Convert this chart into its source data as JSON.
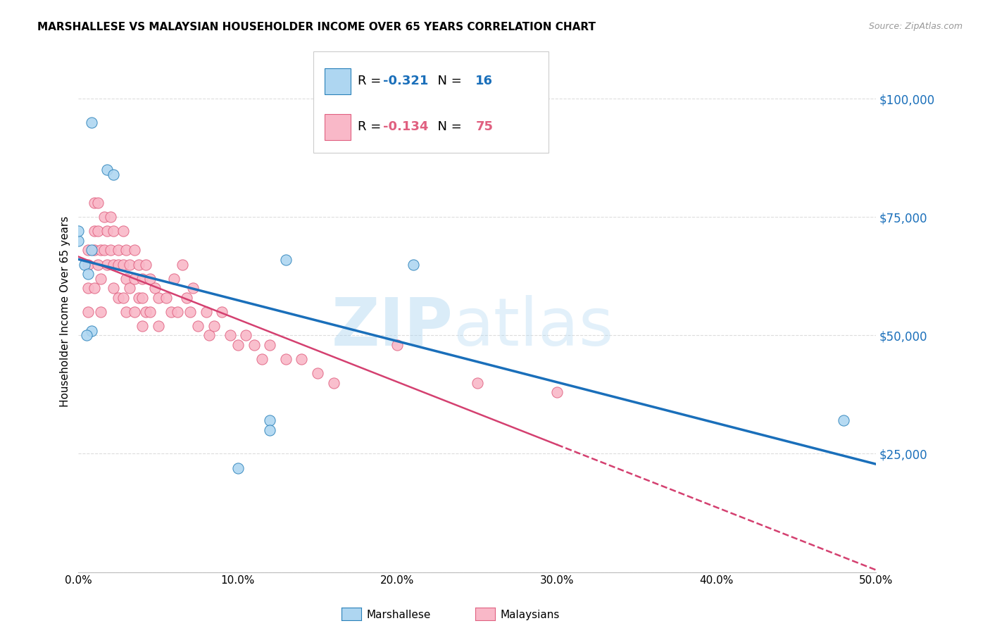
{
  "title": "MARSHALLESE VS MALAYSIAN HOUSEHOLDER INCOME OVER 65 YEARS CORRELATION CHART",
  "source": "Source: ZipAtlas.com",
  "ylabel": "Householder Income Over 65 years",
  "xlim": [
    0.0,
    0.5
  ],
  "ylim": [
    0,
    110000
  ],
  "yticks": [
    0,
    25000,
    50000,
    75000,
    100000
  ],
  "ytick_labels": [
    "",
    "$25,000",
    "$50,000",
    "$75,000",
    "$100,000"
  ],
  "xticks": [
    0.0,
    0.1,
    0.2,
    0.3,
    0.4,
    0.5
  ],
  "xtick_labels": [
    "0.0%",
    "10.0%",
    "20.0%",
    "30.0%",
    "40.0%",
    "50.0%"
  ],
  "background_color": "#ffffff",
  "grid_color": "#dddddd",
  "watermark_zip": "ZIP",
  "watermark_atlas": "atlas",
  "marshallese_fill_color": "#aed6f1",
  "marshallese_edge_color": "#2980b9",
  "malaysian_fill_color": "#f9b8c8",
  "malaysian_edge_color": "#e06080",
  "marshallese_line_color": "#1a6fba",
  "malaysian_line_color": "#d44070",
  "marshallese_R": -0.321,
  "marshallese_N": 16,
  "malaysian_R": -0.134,
  "malaysian_N": 75,
  "marshallese_x": [
    0.008,
    0.018,
    0.022,
    0.0,
    0.0,
    0.004,
    0.006,
    0.008,
    0.008,
    0.13,
    0.12,
    0.21,
    0.48,
    0.12,
    0.1,
    0.005
  ],
  "marshallese_y": [
    95000,
    85000,
    84000,
    70000,
    72000,
    65000,
    63000,
    68000,
    51000,
    66000,
    32000,
    65000,
    32000,
    30000,
    22000,
    50000
  ],
  "malaysian_x": [
    0.006,
    0.006,
    0.006,
    0.006,
    0.01,
    0.01,
    0.01,
    0.01,
    0.012,
    0.012,
    0.012,
    0.014,
    0.014,
    0.014,
    0.016,
    0.016,
    0.018,
    0.018,
    0.02,
    0.02,
    0.022,
    0.022,
    0.022,
    0.025,
    0.025,
    0.025,
    0.028,
    0.028,
    0.028,
    0.03,
    0.03,
    0.03,
    0.032,
    0.032,
    0.035,
    0.035,
    0.035,
    0.038,
    0.038,
    0.04,
    0.04,
    0.04,
    0.042,
    0.042,
    0.045,
    0.045,
    0.048,
    0.05,
    0.05,
    0.055,
    0.058,
    0.06,
    0.062,
    0.065,
    0.068,
    0.07,
    0.072,
    0.075,
    0.08,
    0.082,
    0.085,
    0.09,
    0.095,
    0.1,
    0.105,
    0.11,
    0.115,
    0.12,
    0.13,
    0.14,
    0.15,
    0.16,
    0.2,
    0.25,
    0.3
  ],
  "malaysian_y": [
    68000,
    65000,
    60000,
    55000,
    78000,
    72000,
    68000,
    60000,
    78000,
    72000,
    65000,
    68000,
    62000,
    55000,
    75000,
    68000,
    72000,
    65000,
    75000,
    68000,
    72000,
    65000,
    60000,
    68000,
    65000,
    58000,
    72000,
    65000,
    58000,
    68000,
    62000,
    55000,
    65000,
    60000,
    68000,
    62000,
    55000,
    65000,
    58000,
    62000,
    58000,
    52000,
    65000,
    55000,
    62000,
    55000,
    60000,
    58000,
    52000,
    58000,
    55000,
    62000,
    55000,
    65000,
    58000,
    55000,
    60000,
    52000,
    55000,
    50000,
    52000,
    55000,
    50000,
    48000,
    50000,
    48000,
    45000,
    48000,
    45000,
    45000,
    42000,
    40000,
    48000,
    40000,
    38000
  ]
}
